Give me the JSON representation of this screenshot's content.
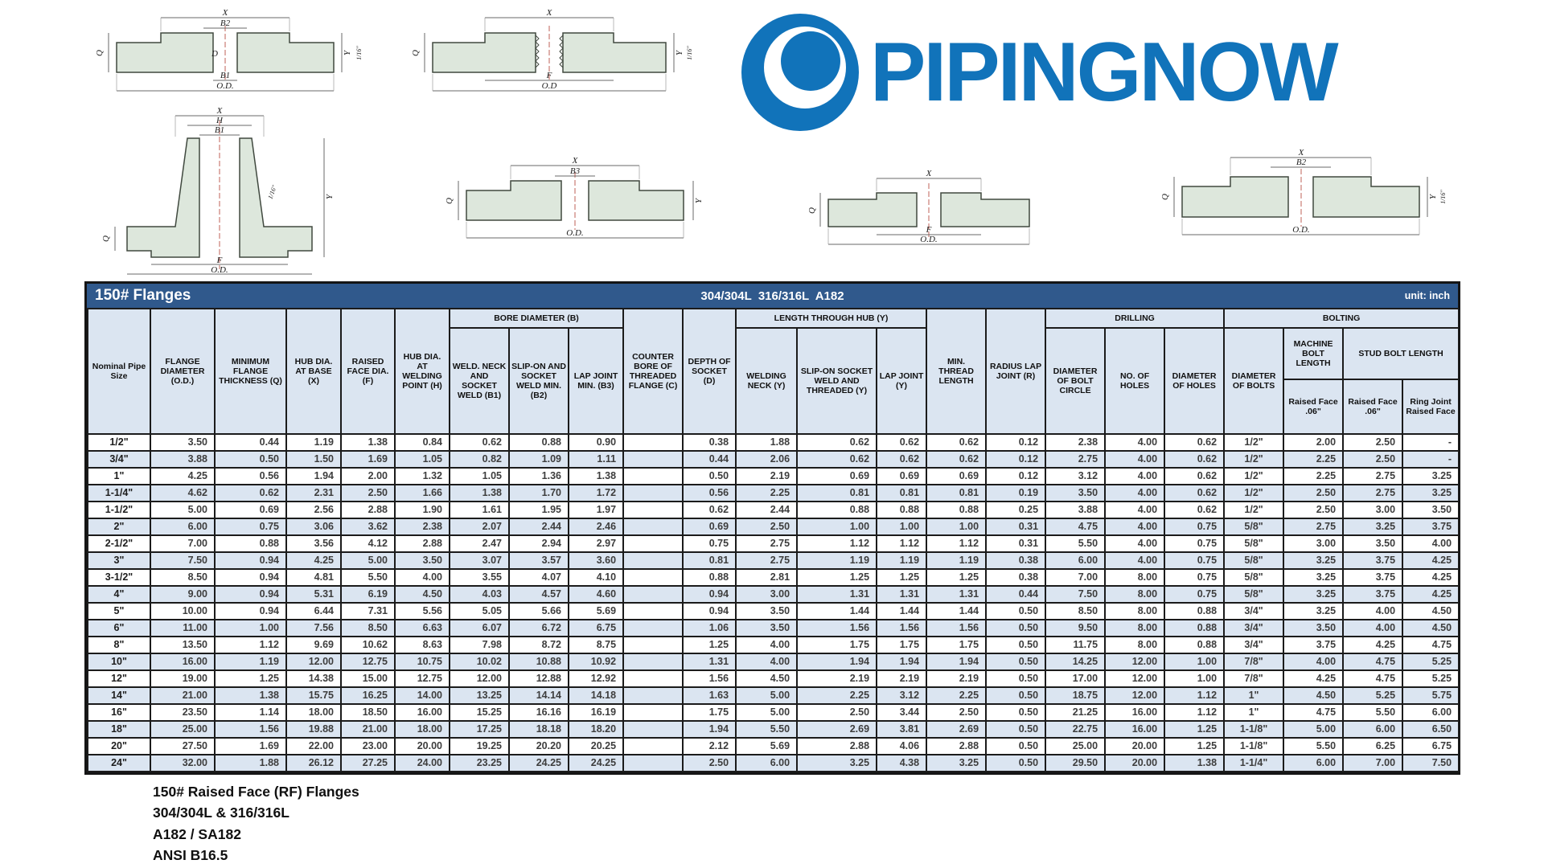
{
  "logo": {
    "text": "PIPINGNOW"
  },
  "colors": {
    "logo_blue": "#1173ba",
    "title_bar_blue": "#30598c",
    "row_shade": "#dbe5f1"
  },
  "dims": {
    "x": "X",
    "h": "H",
    "d": "D",
    "q": "Q",
    "y": "Y",
    "f": "F",
    "b1": "B1",
    "b2": "B2",
    "b3": "B3",
    "od": "O.D.",
    "od_short": "O.D",
    "sixteenth": "1/16\""
  },
  "table": {
    "title": "150# Flanges",
    "subtitle": "304/304L  316/316L  A182",
    "unit": "unit: inch",
    "header": {
      "nominal": "Nominal Pipe Size",
      "flange_od": "FLANGE DIAMETER (O.D.)",
      "min_thickness": "MINIMUM FLANGE THICKNESS (Q)",
      "hub_base": "HUB DIA. AT BASE (X)",
      "raised_face": "RAISED FACE DIA. (F)",
      "hub_weld": "HUB DIA. AT WELDING POINT (H)",
      "bore_group": "BORE DIAMETER (B)",
      "b1": "WELD. NECK AND SOCKET WELD (B1)",
      "b2": "SLIP-ON AND SOCKET WELD MIN. (B2)",
      "b3": "LAP JOINT MIN. (B3)",
      "counter_bore": "COUNTER BORE OF THREADED FLANGE (C)",
      "socket_depth": "DEPTH OF SOCKET (D)",
      "hub_group": "LENGTH THROUGH HUB (Y)",
      "y_weld_neck": "WELDING NECK (Y)",
      "y_slip_on": "SLIP-ON SOCKET WELD AND THREADED (Y)",
      "y_lap": "LAP JOINT (Y)",
      "min_thread": "MIN. THREAD LENGTH",
      "radius_lap": "RADIUS LAP JOINT (R)",
      "drilling_group": "DRILLING",
      "bolt_circle": "DIAMETER OF BOLT CIRCLE",
      "num_holes": "NO. OF HOLES",
      "hole_dia": "DIAMETER OF HOLES",
      "bolting_group": "BOLTING",
      "bolt_dia": "DIAMETER OF BOLTS",
      "machine_bolt": "MACHINE BOLT LENGTH",
      "stud_bolt": "STUD BOLT LENGTH",
      "machine_sub": "Raised Face .06\"",
      "stud_sub_rf": "Raised Face .06\"",
      "stud_sub_rj": "Ring Joint Raised Face"
    },
    "rows": [
      [
        "1/2\"",
        "3.50",
        "0.44",
        "1.19",
        "1.38",
        "0.84",
        "0.62",
        "0.88",
        "0.90",
        "",
        "0.38",
        "1.88",
        "0.62",
        "0.62",
        "0.62",
        "0.12",
        "2.38",
        "4.00",
        "0.62",
        "1/2\"",
        "2.00",
        "2.50",
        "-"
      ],
      [
        "3/4\"",
        "3.88",
        "0.50",
        "1.50",
        "1.69",
        "1.05",
        "0.82",
        "1.09",
        "1.11",
        "",
        "0.44",
        "2.06",
        "0.62",
        "0.62",
        "0.62",
        "0.12",
        "2.75",
        "4.00",
        "0.62",
        "1/2\"",
        "2.25",
        "2.50",
        "-"
      ],
      [
        "1\"",
        "4.25",
        "0.56",
        "1.94",
        "2.00",
        "1.32",
        "1.05",
        "1.36",
        "1.38",
        "",
        "0.50",
        "2.19",
        "0.69",
        "0.69",
        "0.69",
        "0.12",
        "3.12",
        "4.00",
        "0.62",
        "1/2\"",
        "2.25",
        "2.75",
        "3.25"
      ],
      [
        "1-1/4\"",
        "4.62",
        "0.62",
        "2.31",
        "2.50",
        "1.66",
        "1.38",
        "1.70",
        "1.72",
        "",
        "0.56",
        "2.25",
        "0.81",
        "0.81",
        "0.81",
        "0.19",
        "3.50",
        "4.00",
        "0.62",
        "1/2\"",
        "2.50",
        "2.75",
        "3.25"
      ],
      [
        "1-1/2\"",
        "5.00",
        "0.69",
        "2.56",
        "2.88",
        "1.90",
        "1.61",
        "1.95",
        "1.97",
        "",
        "0.62",
        "2.44",
        "0.88",
        "0.88",
        "0.88",
        "0.25",
        "3.88",
        "4.00",
        "0.62",
        "1/2\"",
        "2.50",
        "3.00",
        "3.50"
      ],
      [
        "2\"",
        "6.00",
        "0.75",
        "3.06",
        "3.62",
        "2.38",
        "2.07",
        "2.44",
        "2.46",
        "",
        "0.69",
        "2.50",
        "1.00",
        "1.00",
        "1.00",
        "0.31",
        "4.75",
        "4.00",
        "0.75",
        "5/8\"",
        "2.75",
        "3.25",
        "3.75"
      ],
      [
        "2-1/2\"",
        "7.00",
        "0.88",
        "3.56",
        "4.12",
        "2.88",
        "2.47",
        "2.94",
        "2.97",
        "",
        "0.75",
        "2.75",
        "1.12",
        "1.12",
        "1.12",
        "0.31",
        "5.50",
        "4.00",
        "0.75",
        "5/8\"",
        "3.00",
        "3.50",
        "4.00"
      ],
      [
        "3\"",
        "7.50",
        "0.94",
        "4.25",
        "5.00",
        "3.50",
        "3.07",
        "3.57",
        "3.60",
        "",
        "0.81",
        "2.75",
        "1.19",
        "1.19",
        "1.19",
        "0.38",
        "6.00",
        "4.00",
        "0.75",
        "5/8\"",
        "3.25",
        "3.75",
        "4.25"
      ],
      [
        "3-1/2\"",
        "8.50",
        "0.94",
        "4.81",
        "5.50",
        "4.00",
        "3.55",
        "4.07",
        "4.10",
        "",
        "0.88",
        "2.81",
        "1.25",
        "1.25",
        "1.25",
        "0.38",
        "7.00",
        "8.00",
        "0.75",
        "5/8\"",
        "3.25",
        "3.75",
        "4.25"
      ],
      [
        "4\"",
        "9.00",
        "0.94",
        "5.31",
        "6.19",
        "4.50",
        "4.03",
        "4.57",
        "4.60",
        "",
        "0.94",
        "3.00",
        "1.31",
        "1.31",
        "1.31",
        "0.44",
        "7.50",
        "8.00",
        "0.75",
        "5/8\"",
        "3.25",
        "3.75",
        "4.25"
      ],
      [
        "5\"",
        "10.00",
        "0.94",
        "6.44",
        "7.31",
        "5.56",
        "5.05",
        "5.66",
        "5.69",
        "",
        "0.94",
        "3.50",
        "1.44",
        "1.44",
        "1.44",
        "0.50",
        "8.50",
        "8.00",
        "0.88",
        "3/4\"",
        "3.25",
        "4.00",
        "4.50"
      ],
      [
        "6\"",
        "11.00",
        "1.00",
        "7.56",
        "8.50",
        "6.63",
        "6.07",
        "6.72",
        "6.75",
        "",
        "1.06",
        "3.50",
        "1.56",
        "1.56",
        "1.56",
        "0.50",
        "9.50",
        "8.00",
        "0.88",
        "3/4\"",
        "3.50",
        "4.00",
        "4.50"
      ],
      [
        "8\"",
        "13.50",
        "1.12",
        "9.69",
        "10.62",
        "8.63",
        "7.98",
        "8.72",
        "8.75",
        "",
        "1.25",
        "4.00",
        "1.75",
        "1.75",
        "1.75",
        "0.50",
        "11.75",
        "8.00",
        "0.88",
        "3/4\"",
        "3.75",
        "4.25",
        "4.75"
      ],
      [
        "10\"",
        "16.00",
        "1.19",
        "12.00",
        "12.75",
        "10.75",
        "10.02",
        "10.88",
        "10.92",
        "",
        "1.31",
        "4.00",
        "1.94",
        "1.94",
        "1.94",
        "0.50",
        "14.25",
        "12.00",
        "1.00",
        "7/8\"",
        "4.00",
        "4.75",
        "5.25"
      ],
      [
        "12\"",
        "19.00",
        "1.25",
        "14.38",
        "15.00",
        "12.75",
        "12.00",
        "12.88",
        "12.92",
        "",
        "1.56",
        "4.50",
        "2.19",
        "2.19",
        "2.19",
        "0.50",
        "17.00",
        "12.00",
        "1.00",
        "7/8\"",
        "4.25",
        "4.75",
        "5.25"
      ],
      [
        "14\"",
        "21.00",
        "1.38",
        "15.75",
        "16.25",
        "14.00",
        "13.25",
        "14.14",
        "14.18",
        "",
        "1.63",
        "5.00",
        "2.25",
        "3.12",
        "2.25",
        "0.50",
        "18.75",
        "12.00",
        "1.12",
        "1\"",
        "4.50",
        "5.25",
        "5.75"
      ],
      [
        "16\"",
        "23.50",
        "1.14",
        "18.00",
        "18.50",
        "16.00",
        "15.25",
        "16.16",
        "16.19",
        "",
        "1.75",
        "5.00",
        "2.50",
        "3.44",
        "2.50",
        "0.50",
        "21.25",
        "16.00",
        "1.12",
        "1\"",
        "4.75",
        "5.50",
        "6.00"
      ],
      [
        "18\"",
        "25.00",
        "1.56",
        "19.88",
        "21.00",
        "18.00",
        "17.25",
        "18.18",
        "18.20",
        "",
        "1.94",
        "5.50",
        "2.69",
        "3.81",
        "2.69",
        "0.50",
        "22.75",
        "16.00",
        "1.25",
        "1-1/8\"",
        "5.00",
        "6.00",
        "6.50"
      ],
      [
        "20\"",
        "27.50",
        "1.69",
        "22.00",
        "23.00",
        "20.00",
        "19.25",
        "20.20",
        "20.25",
        "",
        "2.12",
        "5.69",
        "2.88",
        "4.06",
        "2.88",
        "0.50",
        "25.00",
        "20.00",
        "1.25",
        "1-1/8\"",
        "5.50",
        "6.25",
        "6.75"
      ],
      [
        "24\"",
        "32.00",
        "1.88",
        "26.12",
        "27.25",
        "24.00",
        "23.25",
        "24.25",
        "24.25",
        "",
        "2.50",
        "6.00",
        "3.25",
        "4.38",
        "3.25",
        "0.50",
        "29.50",
        "20.00",
        "1.38",
        "1-1/4\"",
        "6.00",
        "7.00",
        "7.50"
      ]
    ]
  },
  "footer": {
    "lines": [
      "150# Raised Face (RF) Flanges",
      "304/304L & 316/316L",
      "A182 / SA182",
      "ANSI B16.5"
    ]
  }
}
